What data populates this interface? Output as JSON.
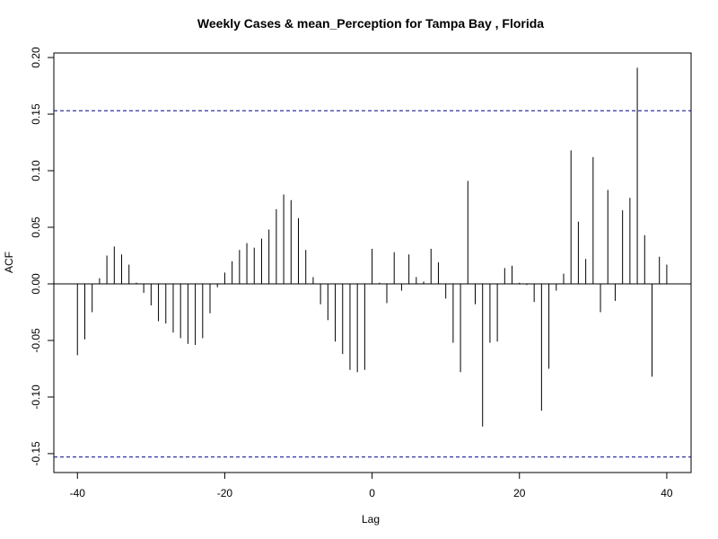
{
  "chart_data": {
    "type": "acf",
    "title": "Weekly Cases & mean_Perception for Tampa Bay , Florida",
    "x_label": "Lag",
    "y_label": "ACF",
    "x": [
      -40,
      -39,
      -38,
      -37,
      -36,
      -35,
      -34,
      -33,
      -32,
      -31,
      -30,
      -29,
      -28,
      -27,
      -26,
      -25,
      -24,
      -23,
      -22,
      -21,
      -20,
      -19,
      -18,
      -17,
      -16,
      -15,
      -14,
      -13,
      -12,
      -11,
      -10,
      -9,
      -8,
      -7,
      -6,
      -5,
      -4,
      -3,
      -2,
      -1,
      0,
      1,
      2,
      3,
      4,
      5,
      6,
      7,
      8,
      9,
      10,
      11,
      12,
      13,
      14,
      15,
      16,
      17,
      18,
      19,
      20,
      21,
      22,
      23,
      24,
      25,
      26,
      27,
      28,
      29,
      30,
      31,
      32,
      33,
      34,
      35,
      36,
      37,
      38,
      39,
      40
    ],
    "values": [
      -0.063,
      -0.049,
      -0.025,
      0.005,
      0.025,
      0.033,
      0.026,
      0.017,
      0.001,
      -0.008,
      -0.019,
      -0.033,
      -0.035,
      -0.043,
      -0.048,
      -0.053,
      -0.054,
      -0.048,
      -0.026,
      -0.003,
      0.01,
      0.02,
      0.03,
      0.036,
      0.032,
      0.04,
      0.048,
      0.066,
      0.079,
      0.074,
      0.058,
      0.03,
      0.006,
      -0.018,
      -0.032,
      -0.051,
      -0.062,
      -0.076,
      -0.078,
      -0.076,
      0.031,
      0.001,
      -0.017,
      0.028,
      -0.006,
      0.026,
      0.006,
      0.002,
      0.031,
      0.019,
      -0.013,
      -0.052,
      -0.078,
      0.091,
      -0.018,
      -0.126,
      -0.052,
      -0.051,
      0.014,
      0.016,
      0.001,
      -0.001,
      -0.016,
      -0.112,
      -0.075,
      -0.006,
      0.009,
      0.118,
      0.055,
      0.022,
      0.112,
      -0.025,
      0.083,
      -0.015,
      0.065,
      0.076,
      0.191,
      0.043,
      -0.082,
      0.024,
      0.017
    ],
    "color": "#000000",
    "conf_lines": [
      -0.153,
      0.153
    ],
    "conf_color": "#00008b",
    "xlim": [
      -43.2,
      43.3
    ],
    "ylim": [
      -0.1667,
      0.204
    ],
    "xticks": [
      -40,
      -20,
      0,
      20,
      40
    ],
    "yticks": [
      {
        "value": -0.15,
        "label": "-0.15"
      },
      {
        "value": -0.1,
        "label": "-0.10"
      },
      {
        "value": -0.05,
        "label": "-0.05"
      },
      {
        "value": 0,
        "label": "0.00"
      },
      {
        "value": 0.05,
        "label": "0.05"
      },
      {
        "value": 0.1,
        "label": "0.10"
      },
      {
        "value": 0.15,
        "label": "0.15"
      },
      {
        "value": 0.2,
        "label": "0.20"
      }
    ]
  }
}
